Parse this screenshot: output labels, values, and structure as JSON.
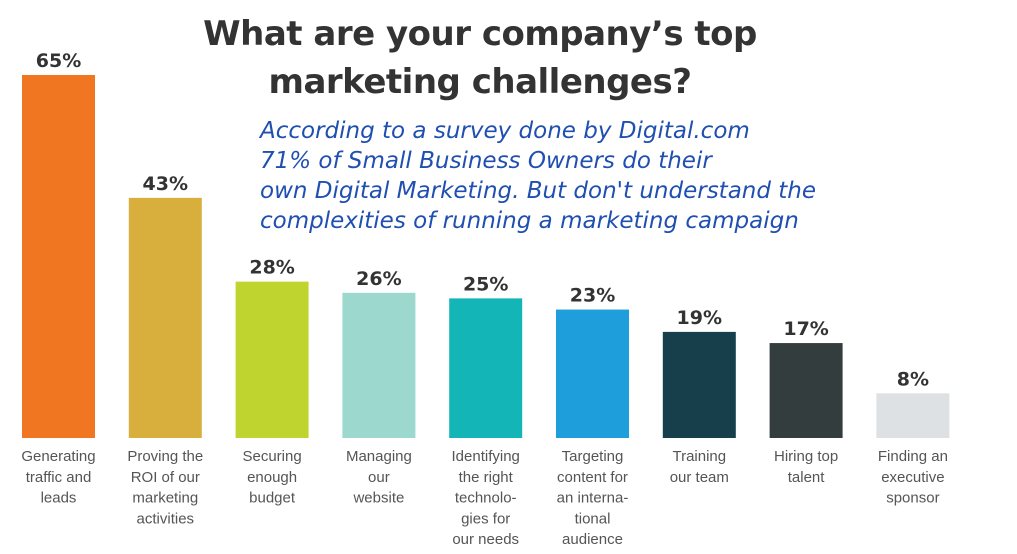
{
  "title_lines": [
    "What are your company’s top",
    "marketing challenges?"
  ],
  "note_lines": [
    "According to a survey done by Digital.com",
    "71% of Small Business Owners do their",
    "own Digital Marketing. But don't understand the",
    "complexities of running a marketing campaign"
  ],
  "chart_data": {
    "type": "bar",
    "title": "What are your company’s top marketing challenges?",
    "xlabel": "",
    "ylabel": "",
    "ylim": [
      0,
      65
    ],
    "grid": false,
    "legend": "none",
    "categories": [
      [
        "Generating",
        "traffic and",
        "leads"
      ],
      [
        "Proving the",
        "ROI of our",
        "marketing",
        "activities"
      ],
      [
        "Securing",
        "enough",
        "budget"
      ],
      [
        "Managing",
        "our",
        "website"
      ],
      [
        "Identifying",
        "the right",
        "technolo-",
        "gies for",
        "our needs"
      ],
      [
        "Targeting",
        "content for",
        "an interna-",
        "tional",
        "audience"
      ],
      [
        "Training",
        "our team"
      ],
      [
        "Hiring top",
        "talent"
      ],
      [
        "Finding an",
        "executive",
        "sponsor"
      ]
    ],
    "values": [
      65,
      43,
      28,
      26,
      25,
      23,
      19,
      17,
      8
    ],
    "value_labels": [
      "65%",
      "43%",
      "28%",
      "26%",
      "25%",
      "23%",
      "19%",
      "17%",
      "8%"
    ],
    "colors": [
      "#f07622",
      "#d8ae3c",
      "#c0d42f",
      "#9dd8cf",
      "#14b5b6",
      "#1e9fdc",
      "#163e4b",
      "#343d3d",
      "#dde1e3"
    ]
  }
}
